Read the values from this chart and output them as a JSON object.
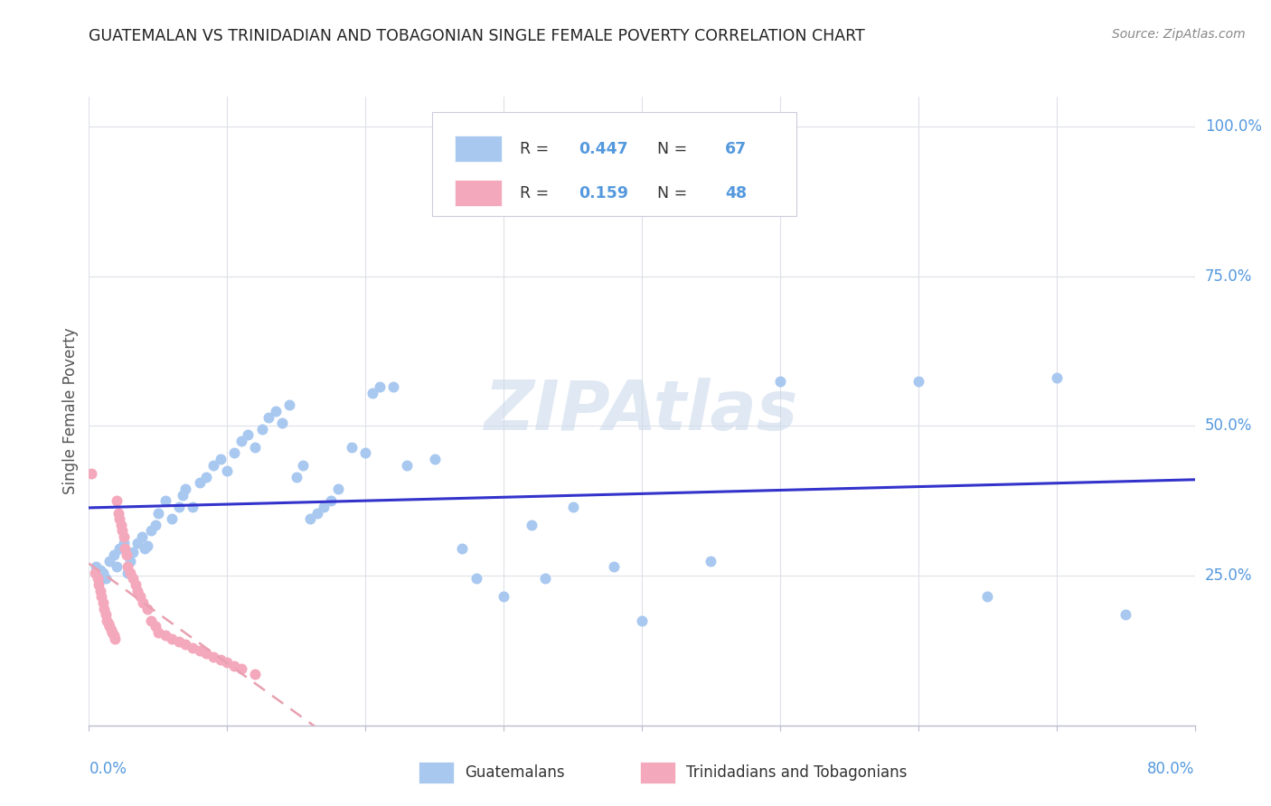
{
  "title": "GUATEMALAN VS TRINIDADIAN AND TOBAGONIAN SINGLE FEMALE POVERTY CORRELATION CHART",
  "source": "Source: ZipAtlas.com",
  "ylabel": "Single Female Poverty",
  "ytick_labels": [
    "25.0%",
    "50.0%",
    "75.0%",
    "100.0%"
  ],
  "ytick_values": [
    0.25,
    0.5,
    0.75,
    1.0
  ],
  "guatemalan_R": 0.447,
  "guatemalan_N": 67,
  "trinidadian_R": 0.159,
  "trinidadian_N": 48,
  "guatemalan_color": "#a8c8f0",
  "trinidadian_color": "#f4a8bc",
  "trend_guatemalan_color": "#3333cc",
  "trend_trinidadian_color": "#e8a0b0",
  "watermark_color": "#ccdaeb",
  "xlim": [
    0,
    0.8
  ],
  "ylim": [
    0,
    1.05
  ],
  "background_color": "#ffffff",
  "grid_color": "#dde0e8",
  "title_color": "#222222",
  "tick_label_color": "#5599dd",
  "source_color": "#888888",
  "ylabel_color": "#555555",
  "guat_x": [
    0.005,
    0.008,
    0.01,
    0.012,
    0.015,
    0.018,
    0.02,
    0.022,
    0.025,
    0.028,
    0.03,
    0.032,
    0.035,
    0.038,
    0.04,
    0.042,
    0.045,
    0.048,
    0.05,
    0.055,
    0.06,
    0.065,
    0.068,
    0.07,
    0.075,
    0.08,
    0.085,
    0.09,
    0.095,
    0.1,
    0.105,
    0.11,
    0.115,
    0.12,
    0.125,
    0.13,
    0.135,
    0.14,
    0.145,
    0.15,
    0.155,
    0.16,
    0.165,
    0.17,
    0.175,
    0.18,
    0.19,
    0.2,
    0.205,
    0.21,
    0.22,
    0.23,
    0.25,
    0.27,
    0.28,
    0.3,
    0.32,
    0.33,
    0.35,
    0.38,
    0.4,
    0.45,
    0.5,
    0.6,
    0.65,
    0.7,
    0.75
  ],
  "guat_y": [
    0.265,
    0.26,
    0.255,
    0.245,
    0.275,
    0.285,
    0.265,
    0.295,
    0.305,
    0.255,
    0.275,
    0.29,
    0.305,
    0.315,
    0.295,
    0.3,
    0.325,
    0.335,
    0.355,
    0.375,
    0.345,
    0.365,
    0.385,
    0.395,
    0.365,
    0.405,
    0.415,
    0.435,
    0.445,
    0.425,
    0.455,
    0.475,
    0.485,
    0.465,
    0.495,
    0.515,
    0.525,
    0.505,
    0.535,
    0.415,
    0.435,
    0.345,
    0.355,
    0.365,
    0.375,
    0.395,
    0.465,
    0.455,
    0.555,
    0.565,
    0.565,
    0.435,
    0.445,
    0.295,
    0.245,
    0.215,
    0.335,
    0.245,
    0.365,
    0.265,
    0.175,
    0.275,
    0.575,
    0.575,
    0.215,
    0.58,
    0.185
  ],
  "trin_x": [
    0.002,
    0.004,
    0.006,
    0.007,
    0.008,
    0.009,
    0.01,
    0.011,
    0.012,
    0.013,
    0.014,
    0.015,
    0.016,
    0.017,
    0.018,
    0.019,
    0.02,
    0.021,
    0.022,
    0.023,
    0.024,
    0.025,
    0.026,
    0.027,
    0.028,
    0.03,
    0.032,
    0.034,
    0.035,
    0.037,
    0.039,
    0.042,
    0.045,
    0.048,
    0.05,
    0.055,
    0.06,
    0.065,
    0.07,
    0.075,
    0.08,
    0.085,
    0.09,
    0.095,
    0.1,
    0.105,
    0.11,
    0.12
  ],
  "trin_y": [
    0.42,
    0.255,
    0.245,
    0.235,
    0.225,
    0.215,
    0.205,
    0.195,
    0.185,
    0.175,
    0.17,
    0.165,
    0.16,
    0.155,
    0.15,
    0.145,
    0.375,
    0.355,
    0.345,
    0.335,
    0.325,
    0.315,
    0.295,
    0.285,
    0.265,
    0.255,
    0.245,
    0.235,
    0.225,
    0.215,
    0.205,
    0.195,
    0.175,
    0.165,
    0.155,
    0.15,
    0.145,
    0.14,
    0.135,
    0.13,
    0.125,
    0.12,
    0.115,
    0.11,
    0.105,
    0.1,
    0.095,
    0.085
  ]
}
